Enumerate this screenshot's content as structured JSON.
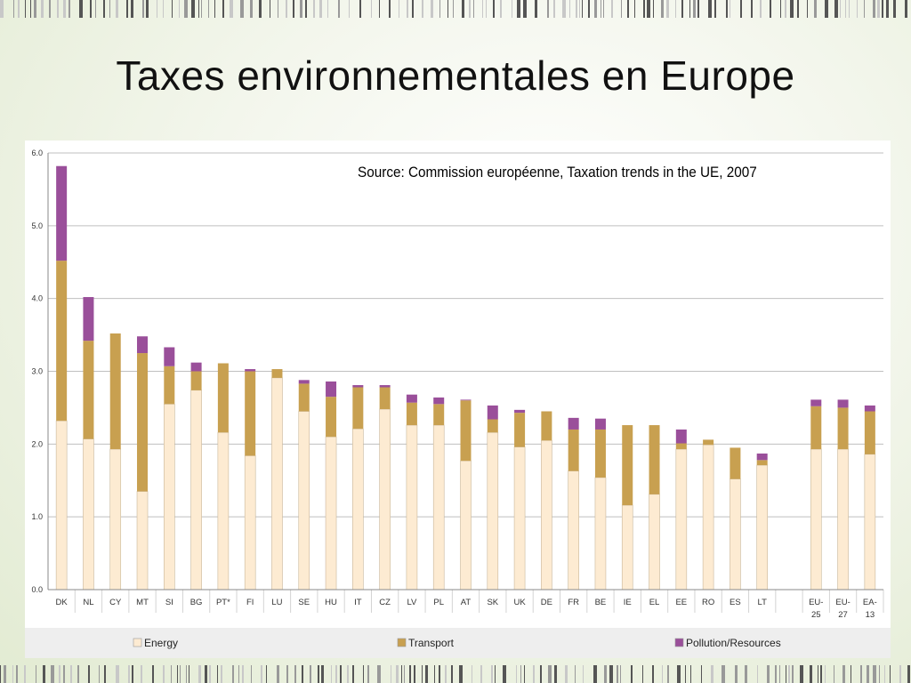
{
  "title": "Taxes environnementales en Europe",
  "source_note": "Source: Commission européenne, Taxation trends in the UE, 2007",
  "colors": {
    "energy": "#fdebd2",
    "energy_stroke": "#c9b79a",
    "transport": "#c8a050",
    "pollution": "#9a4f9a",
    "grid": "#bfbfbf"
  },
  "chart_data": {
    "type": "bar",
    "stacked": true,
    "ylim": [
      0,
      6
    ],
    "yticks": [
      "0.0",
      "1.0",
      "2.0",
      "3.0",
      "4.0",
      "5.0",
      "6.0"
    ],
    "grid": true,
    "legend_position": "bottom",
    "categories": [
      [
        "DK"
      ],
      [
        "NL"
      ],
      [
        "CY"
      ],
      [
        "MT"
      ],
      [
        "SI"
      ],
      [
        "BG"
      ],
      [
        "PT*"
      ],
      [
        "FI"
      ],
      [
        "LU"
      ],
      [
        "SE"
      ],
      [
        "HU"
      ],
      [
        "IT"
      ],
      [
        "CZ"
      ],
      [
        "LV"
      ],
      [
        "PL"
      ],
      [
        "AT"
      ],
      [
        "SK"
      ],
      [
        "UK"
      ],
      [
        "DE"
      ],
      [
        "FR"
      ],
      [
        "BE"
      ],
      [
        "IE"
      ],
      [
        "EL"
      ],
      [
        "EE"
      ],
      [
        "RO"
      ],
      [
        "ES"
      ],
      [
        "LT"
      ],
      [
        ""
      ],
      [
        "EU-",
        "25"
      ],
      [
        "EU-",
        "27"
      ],
      [
        "EA-",
        "13"
      ]
    ],
    "series": [
      {
        "name": "Energy",
        "values": [
          2.32,
          2.07,
          1.93,
          1.35,
          2.55,
          2.74,
          2.16,
          1.84,
          2.91,
          2.45,
          2.1,
          2.21,
          2.48,
          2.26,
          2.26,
          1.77,
          2.16,
          1.96,
          2.05,
          1.63,
          1.54,
          1.16,
          1.31,
          1.93,
          1.99,
          1.52,
          1.71,
          null,
          1.93,
          1.93,
          1.86
        ]
      },
      {
        "name": "Transport",
        "values": [
          2.2,
          1.35,
          1.59,
          1.9,
          0.52,
          0.26,
          0.95,
          1.16,
          0.12,
          0.38,
          0.55,
          0.57,
          0.3,
          0.31,
          0.29,
          0.83,
          0.18,
          0.47,
          0.4,
          0.57,
          0.66,
          1.1,
          0.95,
          0.08,
          0.07,
          0.43,
          0.07,
          null,
          0.59,
          0.57,
          0.59
        ]
      },
      {
        "name": "Pollution/Resources",
        "values": [
          1.3,
          0.6,
          0.0,
          0.23,
          0.26,
          0.12,
          0.0,
          0.03,
          0.0,
          0.05,
          0.21,
          0.03,
          0.03,
          0.11,
          0.09,
          0.01,
          0.19,
          0.04,
          0.0,
          0.16,
          0.15,
          0.0,
          0.0,
          0.19,
          0.0,
          0.0,
          0.09,
          null,
          0.09,
          0.11,
          0.08
        ]
      }
    ]
  }
}
